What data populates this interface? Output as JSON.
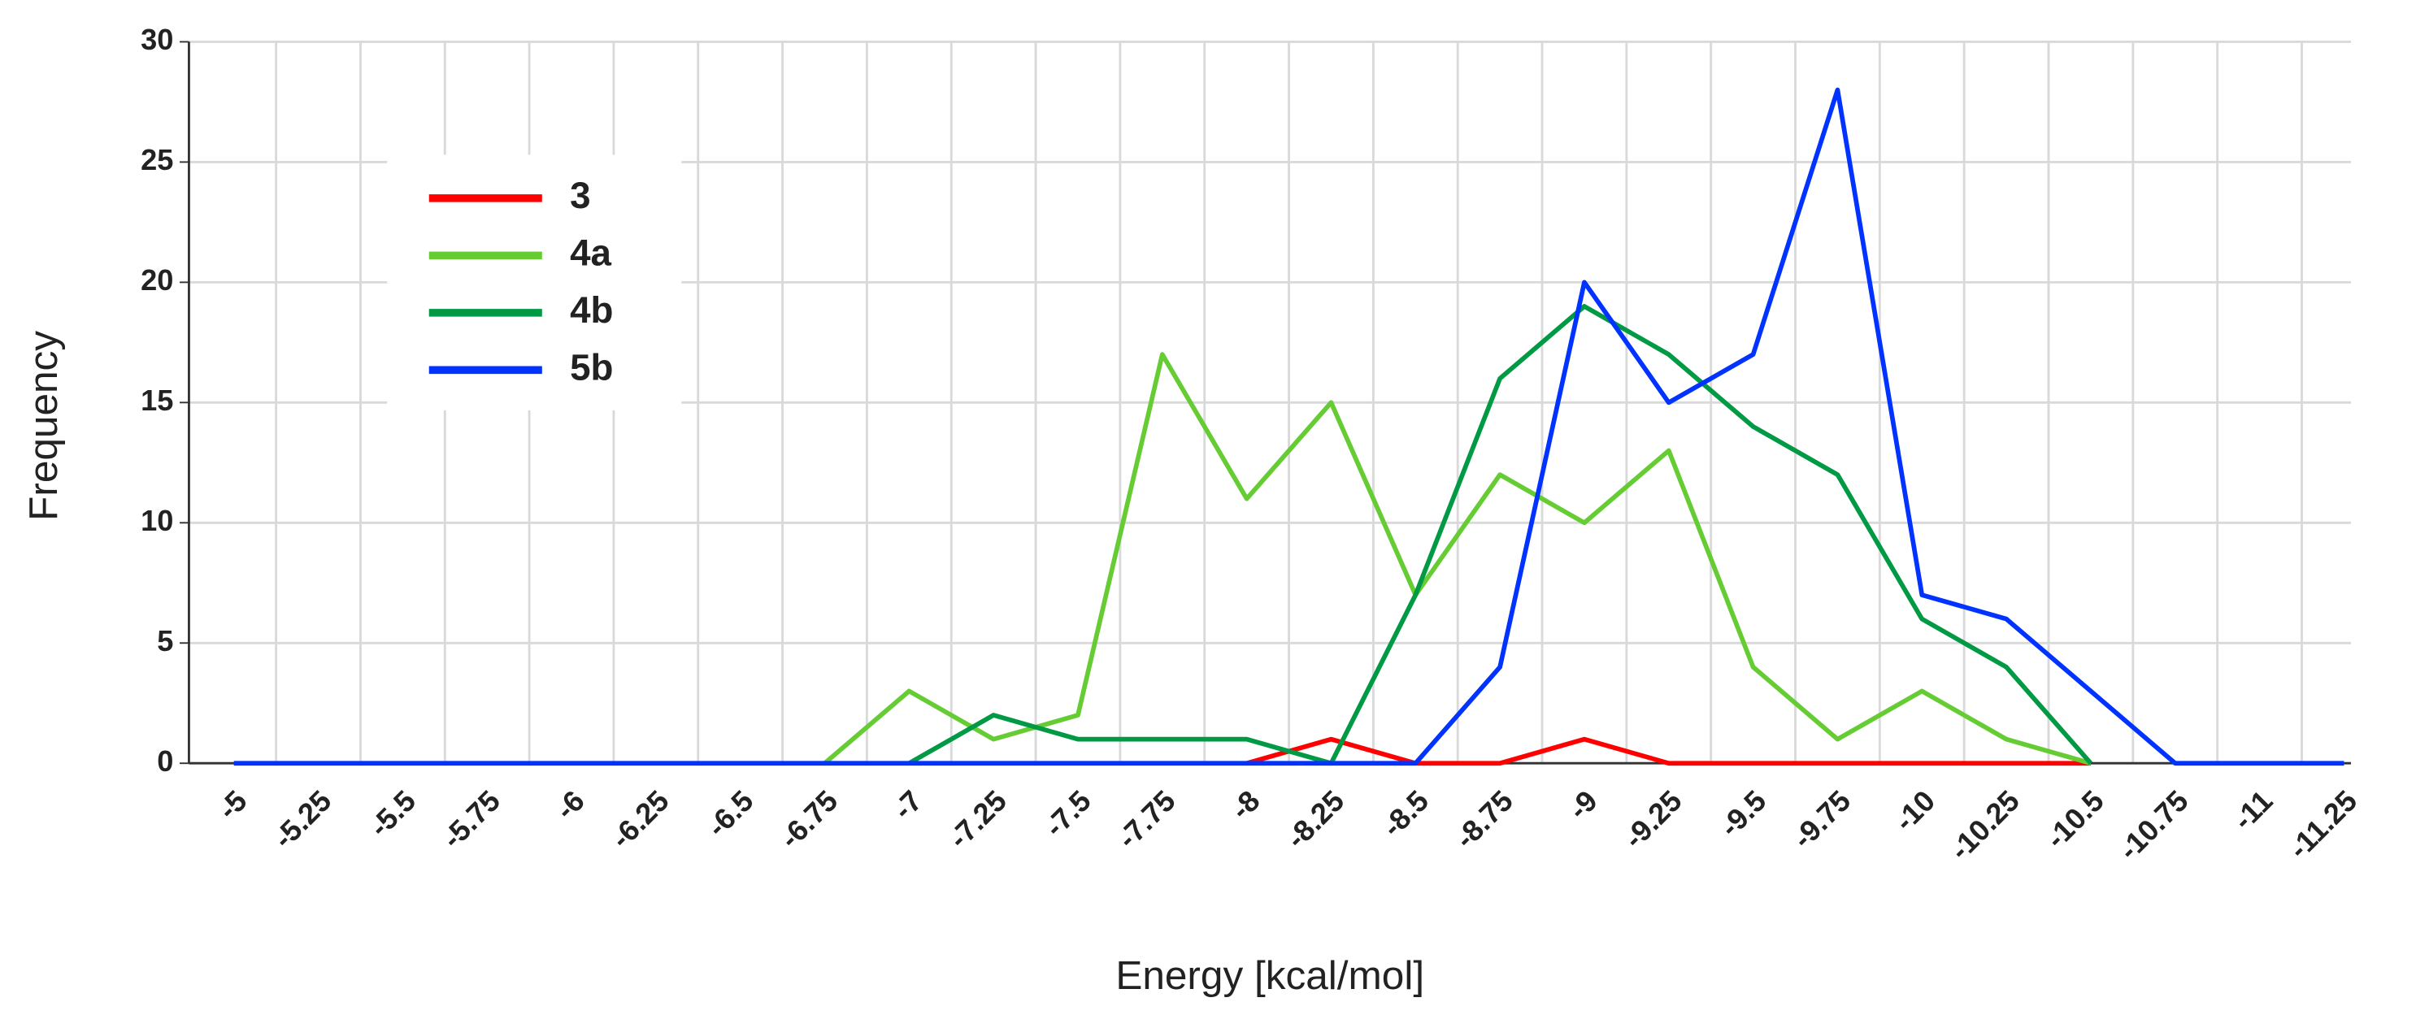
{
  "chart_data": {
    "type": "line",
    "x_label": "Energy [kcal/mol]",
    "y_label": "Frequency",
    "categories": [
      "-5",
      "-5.25",
      "-5.5",
      "-5.75",
      "-6",
      "-6.25",
      "-6.5",
      "-6.75",
      "-7",
      "-7.25",
      "-7.5",
      "-7.75",
      "-8",
      "-8.25",
      "-8.5",
      "-8.75",
      "-9",
      "-9.25",
      "-9.5",
      "-9.75",
      "-10",
      "-10.25",
      "-10.5",
      "-10.75",
      "-11",
      "-11.25"
    ],
    "series": [
      {
        "name": "3",
        "color": "#ff0000",
        "values": [
          null,
          null,
          null,
          null,
          null,
          null,
          null,
          null,
          null,
          null,
          null,
          null,
          0,
          1,
          0,
          0,
          1,
          0,
          0,
          0,
          0,
          0,
          0,
          null,
          null,
          null
        ]
      },
      {
        "name": "4a",
        "color": "#66cc33",
        "values": [
          null,
          null,
          null,
          null,
          null,
          null,
          null,
          0,
          3,
          1,
          2,
          17,
          11,
          15,
          7,
          12,
          10,
          13,
          4,
          1,
          3,
          1,
          0,
          null,
          null,
          null
        ]
      },
      {
        "name": "4b",
        "color": "#009944",
        "values": [
          null,
          null,
          null,
          null,
          null,
          null,
          null,
          null,
          0,
          2,
          1,
          1,
          1,
          0,
          7,
          16,
          19,
          17,
          14,
          12,
          6,
          4,
          0,
          null,
          null,
          null
        ]
      },
      {
        "name": "5b",
        "color": "#0033ff",
        "values": [
          0,
          0,
          0,
          0,
          0,
          0,
          0,
          0,
          0,
          0,
          0,
          0,
          0,
          0,
          0,
          4,
          20,
          15,
          17,
          28,
          7,
          6,
          3,
          0,
          0,
          0
        ]
      }
    ],
    "ylim": [
      0,
      30
    ],
    "yticks": [
      0,
      5,
      10,
      15,
      20,
      25,
      30
    ],
    "grid": true,
    "legend": "upper left"
  }
}
